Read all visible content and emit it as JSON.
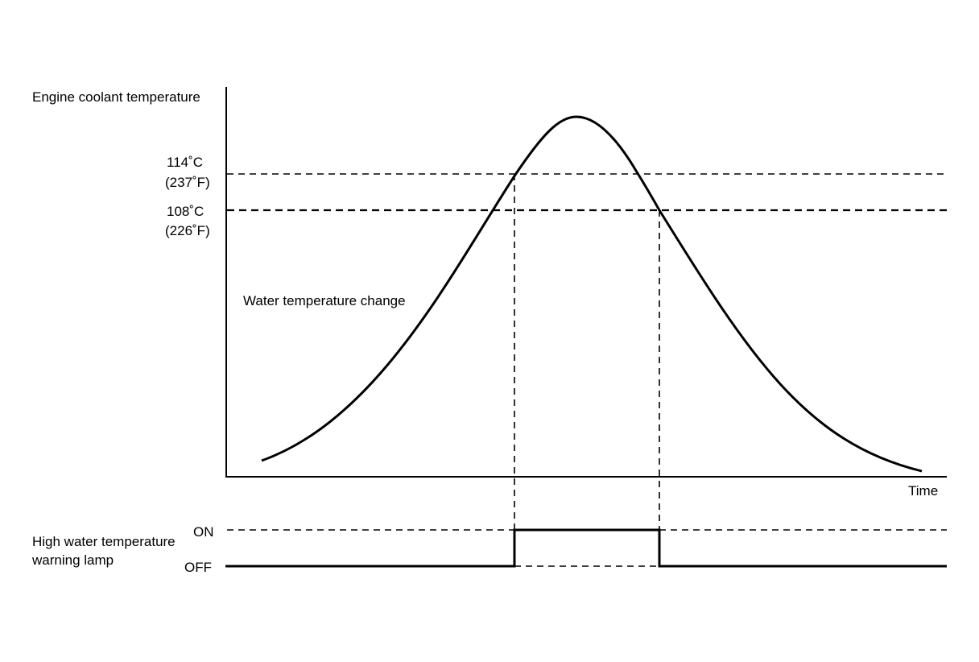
{
  "y_axis_label": "Engine coolant temperature",
  "x_axis_label": "Time",
  "threshold_high": {
    "line1": "114˚C",
    "line2": "(237˚F)"
  },
  "threshold_low": {
    "line1": "108˚C",
    "line2": "(226˚F)"
  },
  "curve_label": "Water temperature change",
  "lamp_label": {
    "line1": "High water temperature",
    "line2": "warning lamp"
  },
  "lamp_states": {
    "on": "ON",
    "off": "OFF"
  }
}
